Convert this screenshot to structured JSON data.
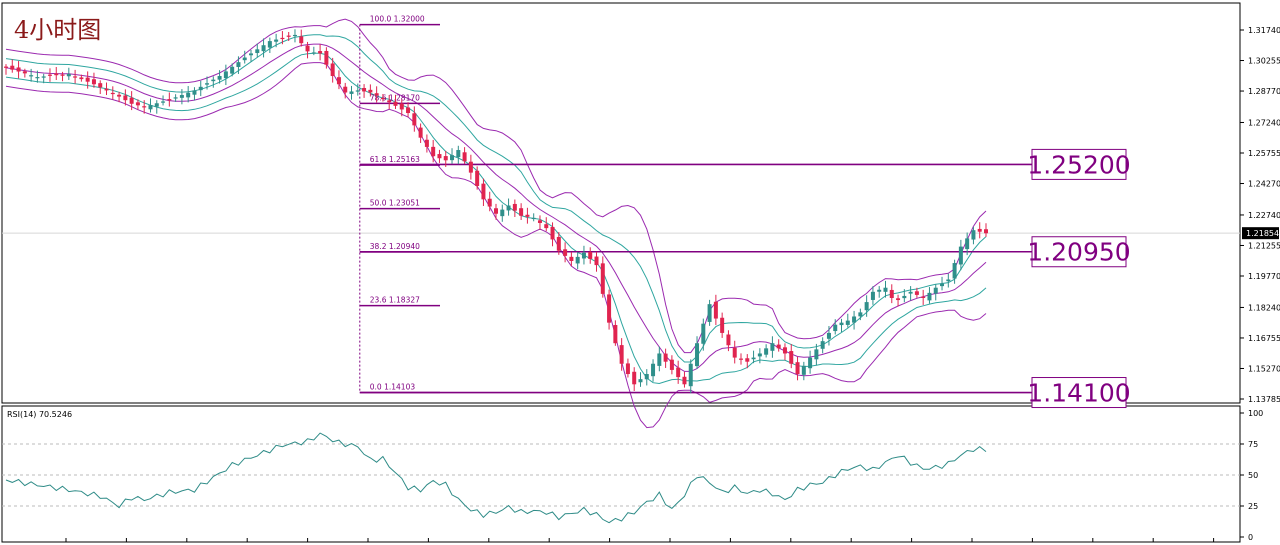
{
  "chart_title": "4小时图",
  "price_axis_ticks": [
    "1.31740",
    "1.30255",
    "1.28770",
    "1.27240",
    "1.25755",
    "1.24270",
    "1.22740",
    "1.21255",
    "1.19770",
    "1.18240",
    "1.16755",
    "1.15270",
    "1.13785"
  ],
  "current_price_label": "1.21854",
  "rsi": {
    "title": "RSI(14) 70.5246",
    "ticks": [
      "100",
      "75",
      "50",
      "25",
      "0"
    ]
  },
  "fibonacci_levels": [
    {
      "label": "100.0  1.32000"
    },
    {
      "label": "78.6  1.28170"
    },
    {
      "label": "61.8  1.25163"
    },
    {
      "label": "50.0  1.23051"
    },
    {
      "label": "38.2  1.20940"
    },
    {
      "label": "23.6  1.18327"
    },
    {
      "label": "0.0  1.14103"
    }
  ],
  "highlight_levels": [
    "1.25200",
    "1.20950",
    "1.14100"
  ],
  "colors": {
    "bull": "#2f8f8a",
    "bear": "#e0244f",
    "band_inner": "#2fa6a0",
    "band_outer": "#9b2ab0",
    "fib": "#800080",
    "rsi_line": "#2e8b87",
    "title": "#8b1a1a"
  },
  "chart_data": {
    "type": "candlestick",
    "symbol_title": "4小时图",
    "price_axis": {
      "min": 1.135,
      "max": 1.322
    },
    "indicators": [
      "bollinger_bands_double",
      "fibonacci_retracement",
      "RSI(14)"
    ],
    "fibonacci": [
      {
        "ratio": 100.0,
        "price": 1.32
      },
      {
        "ratio": 78.6,
        "price": 1.2817
      },
      {
        "ratio": 61.8,
        "price": 1.25163
      },
      {
        "ratio": 50.0,
        "price": 1.23051
      },
      {
        "ratio": 38.2,
        "price": 1.2094
      },
      {
        "ratio": 23.6,
        "price": 1.18327
      },
      {
        "ratio": 0.0,
        "price": 1.14103
      }
    ],
    "key_levels": [
      1.252,
      1.2095,
      1.141
    ],
    "close_path": [
      [
        0,
        1.299
      ],
      [
        5,
        1.2945
      ],
      [
        10,
        1.296
      ],
      [
        14,
        1.291
      ],
      [
        18,
        1.285
      ],
      [
        20,
        1.2815
      ],
      [
        22,
        1.28
      ],
      [
        26,
        1.2835
      ],
      [
        30,
        1.288
      ],
      [
        34,
        1.295
      ],
      [
        38,
        1.304
      ],
      [
        42,
        1.312
      ],
      [
        46,
        1.315
      ],
      [
        48,
        1.307
      ],
      [
        50,
        1.306
      ],
      [
        52,
        1.295
      ],
      [
        54,
        1.287
      ],
      [
        56,
        1.288
      ],
      [
        58,
        1.287
      ],
      [
        60,
        1.284
      ],
      [
        64,
        1.277
      ],
      [
        66,
        1.265
      ],
      [
        68,
        1.256
      ],
      [
        70,
        1.254
      ],
      [
        72,
        1.259
      ],
      [
        74,
        1.248
      ],
      [
        76,
        1.235
      ],
      [
        78,
        1.228
      ],
      [
        80,
        1.232
      ],
      [
        82,
        1.227
      ],
      [
        84,
        1.226
      ],
      [
        86,
        1.221
      ],
      [
        88,
        1.21
      ],
      [
        90,
        1.205
      ],
      [
        92,
        1.209
      ],
      [
        94,
        1.203
      ],
      [
        96,
        1.175
      ],
      [
        98,
        1.155
      ],
      [
        100,
        1.145
      ],
      [
        102,
        1.15
      ],
      [
        104,
        1.16
      ],
      [
        106,
        1.152
      ],
      [
        108,
        1.145
      ],
      [
        110,
        1.165
      ],
      [
        112,
        1.184
      ],
      [
        114,
        1.17
      ],
      [
        116,
        1.158
      ],
      [
        118,
        1.156
      ],
      [
        120,
        1.16
      ],
      [
        122,
        1.165
      ],
      [
        124,
        1.16
      ],
      [
        126,
        1.15
      ],
      [
        128,
        1.158
      ],
      [
        130,
        1.166
      ],
      [
        132,
        1.174
      ],
      [
        134,
        1.176
      ],
      [
        136,
        1.18
      ],
      [
        138,
        1.19
      ],
      [
        140,
        1.192
      ],
      [
        141,
        1.187
      ],
      [
        142,
        1.186
      ],
      [
        144,
        1.19
      ],
      [
        146,
        1.187
      ],
      [
        148,
        1.192
      ],
      [
        150,
        1.196
      ],
      [
        152,
        1.212
      ],
      [
        154,
        1.22
      ],
      [
        156,
        1.2185
      ]
    ],
    "rsi_series": {
      "name": "RSI(14)",
      "last": 70.5246,
      "path": [
        [
          0,
          46
        ],
        [
          5,
          42
        ],
        [
          10,
          38
        ],
        [
          15,
          33
        ],
        [
          18,
          25
        ],
        [
          20,
          32
        ],
        [
          22,
          30
        ],
        [
          26,
          36
        ],
        [
          30,
          38
        ],
        [
          33,
          48
        ],
        [
          36,
          58
        ],
        [
          40,
          66
        ],
        [
          44,
          74
        ],
        [
          48,
          77
        ],
        [
          50,
          83
        ],
        [
          53,
          76
        ],
        [
          56,
          73
        ],
        [
          58,
          62
        ],
        [
          60,
          63
        ],
        [
          62,
          52
        ],
        [
          64,
          40
        ],
        [
          66,
          38
        ],
        [
          68,
          45
        ],
        [
          70,
          42
        ],
        [
          72,
          30
        ],
        [
          74,
          22
        ],
        [
          76,
          18
        ],
        [
          78,
          20
        ],
        [
          80,
          24
        ],
        [
          82,
          20
        ],
        [
          84,
          21
        ],
        [
          86,
          20
        ],
        [
          88,
          16
        ],
        [
          90,
          19
        ],
        [
          92,
          22
        ],
        [
          94,
          18
        ],
        [
          96,
          12
        ],
        [
          98,
          15
        ],
        [
          100,
          20
        ],
        [
          102,
          28
        ],
        [
          104,
          34
        ],
        [
          106,
          22
        ],
        [
          108,
          34
        ],
        [
          110,
          50
        ],
        [
          112,
          44
        ],
        [
          114,
          36
        ],
        [
          116,
          40
        ],
        [
          118,
          35
        ],
        [
          120,
          38
        ],
        [
          122,
          35
        ],
        [
          124,
          30
        ],
        [
          126,
          38
        ],
        [
          128,
          42
        ],
        [
          130,
          44
        ],
        [
          132,
          50
        ],
        [
          134,
          55
        ],
        [
          136,
          57
        ],
        [
          138,
          54
        ],
        [
          140,
          60
        ],
        [
          142,
          66
        ],
        [
          144,
          60
        ],
        [
          146,
          55
        ],
        [
          148,
          56
        ],
        [
          150,
          59
        ],
        [
          152,
          66
        ],
        [
          154,
          71
        ],
        [
          156,
          70.5
        ]
      ]
    }
  }
}
